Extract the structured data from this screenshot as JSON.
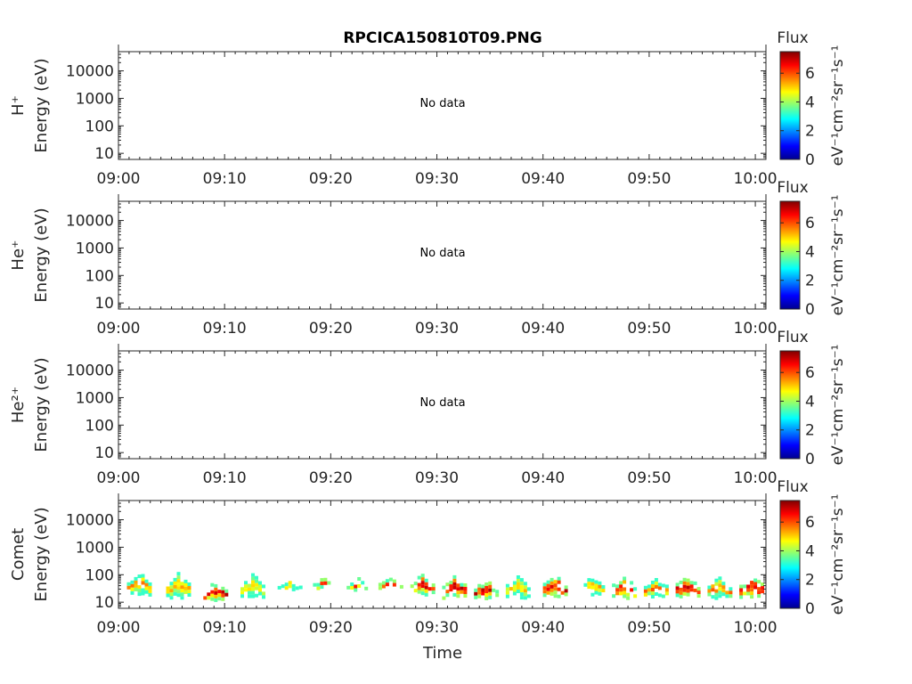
{
  "figure": {
    "title": "RPCICA150810T09.PNG",
    "xlabel": "Time"
  },
  "chart_data": {
    "type": "heatmap",
    "title": "RPCICA150810T09.PNG",
    "xlabel": "Time",
    "x_tick_labels": [
      "09:00",
      "09:10",
      "09:20",
      "09:30",
      "09:40",
      "09:50",
      "10:00"
    ],
    "xlim": [
      "09:00",
      "10:01"
    ],
    "yscale": "log",
    "ylim": [
      6,
      50000
    ],
    "y_tick_values": [
      10,
      100,
      1000,
      10000
    ],
    "y_tick_labels": [
      "10",
      "100",
      "1000",
      "10000"
    ],
    "colorbar": {
      "title": "Flux",
      "label": "eV⁻¹cm⁻²sr⁻¹s⁻¹",
      "range": [
        0,
        7.5
      ],
      "tick_labels": [
        "0",
        "2",
        "4",
        "6"
      ],
      "colormap": "jet"
    },
    "panels": [
      {
        "species": "H⁺",
        "ylabel": "Energy (eV)",
        "annotation": "No data",
        "bursts": []
      },
      {
        "species": "He⁺",
        "ylabel": "Energy (eV)",
        "annotation": "No data",
        "bursts": []
      },
      {
        "species": "He²⁺",
        "ylabel": "Energy (eV)",
        "annotation": "No data",
        "bursts": []
      },
      {
        "species": "Comet",
        "ylabel": "Energy (eV)",
        "annotation": "",
        "bursts": [
          {
            "t": 1.8,
            "e_min": 20,
            "e_max": 150,
            "peak": 5.8
          },
          {
            "t": 5.5,
            "e_min": 15,
            "e_max": 140,
            "peak": 5.5
          },
          {
            "t": 9.0,
            "e_min": 12,
            "e_max": 70,
            "peak": 7.0
          },
          {
            "t": 12.5,
            "e_min": 15,
            "e_max": 120,
            "peak": 5.0
          },
          {
            "t": 16.0,
            "e_min": 25,
            "e_max": 90,
            "peak": 5.5
          },
          {
            "t": 19.0,
            "e_min": 30,
            "e_max": 100,
            "peak": 7.0
          },
          {
            "t": 22.5,
            "e_min": 30,
            "e_max": 90,
            "peak": 6.5
          },
          {
            "t": 25.5,
            "e_min": 35,
            "e_max": 110,
            "peak": 7.0
          },
          {
            "t": 28.5,
            "e_min": 20,
            "e_max": 120,
            "peak": 7.0
          },
          {
            "t": 31.5,
            "e_min": 15,
            "e_max": 110,
            "peak": 7.0
          },
          {
            "t": 34.5,
            "e_min": 15,
            "e_max": 80,
            "peak": 7.0
          },
          {
            "t": 37.5,
            "e_min": 15,
            "e_max": 100,
            "peak": 5.2
          },
          {
            "t": 41.0,
            "e_min": 15,
            "e_max": 110,
            "peak": 7.0
          },
          {
            "t": 44.5,
            "e_min": 20,
            "e_max": 100,
            "peak": 5.5
          },
          {
            "t": 47.5,
            "e_min": 15,
            "e_max": 110,
            "peak": 7.0
          },
          {
            "t": 50.5,
            "e_min": 15,
            "e_max": 100,
            "peak": 5.8
          },
          {
            "t": 53.5,
            "e_min": 15,
            "e_max": 110,
            "peak": 7.0
          },
          {
            "t": 56.5,
            "e_min": 15,
            "e_max": 110,
            "peak": 5.8
          },
          {
            "t": 59.5,
            "e_min": 15,
            "e_max": 110,
            "peak": 7.0
          }
        ]
      }
    ]
  }
}
